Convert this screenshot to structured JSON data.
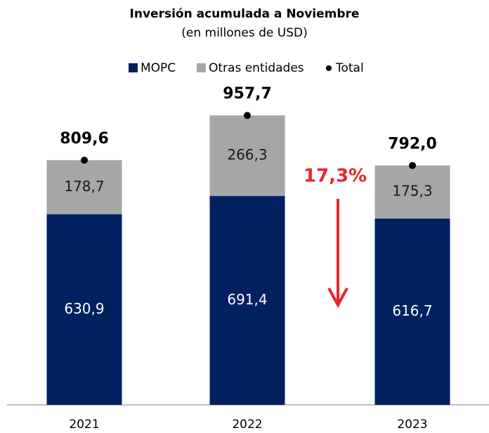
{
  "chart_data": {
    "type": "stacked_bar",
    "title": "Inversión acumulada a Noviembre",
    "subtitle": "(en millones de USD)",
    "categories": [
      "2021",
      "2022",
      "2023"
    ],
    "series": [
      {
        "name": "MOPC",
        "color": "#002060",
        "label_color": "#ffffff",
        "values": [
          630.9,
          691.4,
          616.7
        ],
        "value_labels": [
          "630,9",
          "691,4",
          "616,7"
        ]
      },
      {
        "name": "Otras entidades",
        "color": "#a6a6a6",
        "label_color": "#1a1a1a",
        "values": [
          178.7,
          266.3,
          175.3
        ],
        "value_labels": [
          "178,7",
          "266,3",
          "175,3"
        ]
      }
    ],
    "total": {
      "name": "Total",
      "color": "#000000",
      "values": [
        809.6,
        957.7,
        792.0
      ],
      "value_labels": [
        "809,6",
        "957,7",
        "792,0"
      ]
    },
    "annotation": {
      "text": "17,3%",
      "color": "#e8262d"
    },
    "ylim": [
      0,
      1000
    ]
  }
}
